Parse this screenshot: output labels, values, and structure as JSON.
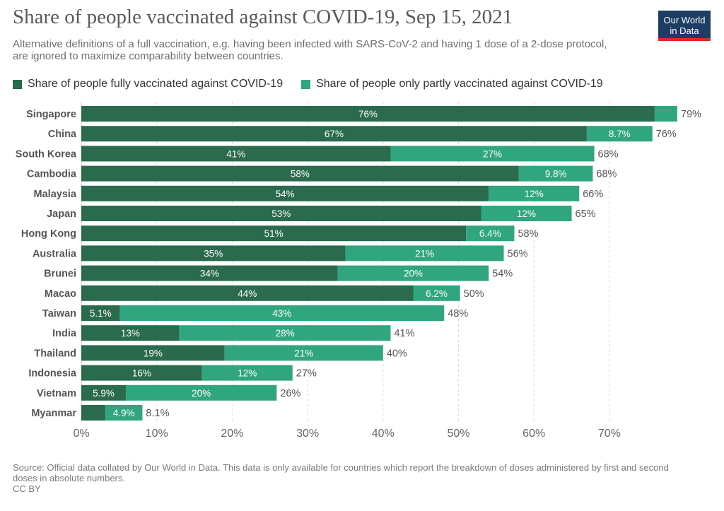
{
  "header": {
    "title": "Share of people vaccinated against COVID-19, Sep 15, 2021",
    "subtitle": "Alternative definitions of a full vaccination, e.g. having been infected with SARS-CoV-2 and having 1 dose of a 2-dose protocol, are ignored to maximize comparability between countries.",
    "logo_line1": "Our World",
    "logo_line2": "in Data"
  },
  "legend": {
    "full_label": "Share of people fully vaccinated against COVID-19",
    "partial_label": "Share of people only partly vaccinated against COVID-19"
  },
  "colors": {
    "full": "#2a6a4d",
    "partial": "#30a67e",
    "logo_bg": "#1d3d63",
    "logo_stripe": "#e02a2a"
  },
  "chart_data": {
    "type": "bar",
    "orientation": "horizontal",
    "stacked": true,
    "categories": [
      "Singapore",
      "China",
      "South Korea",
      "Cambodia",
      "Malaysia",
      "Japan",
      "Hong Kong",
      "Australia",
      "Brunei",
      "Macao",
      "Taiwan",
      "India",
      "Thailand",
      "Indonesia",
      "Vietnam",
      "Myanmar"
    ],
    "series": [
      {
        "name": "Share of people fully vaccinated against COVID-19",
        "values": [
          76,
          67,
          41,
          58,
          54,
          53,
          51,
          35,
          34,
          44,
          5.1,
          13,
          19,
          16,
          5.9,
          3.2
        ],
        "labels": [
          "76%",
          "67%",
          "41%",
          "58%",
          "54%",
          "53%",
          "51%",
          "35%",
          "34%",
          "44%",
          "5.1%",
          "13%",
          "19%",
          "16%",
          "5.9%",
          ""
        ]
      },
      {
        "name": "Share of people only partly vaccinated against COVID-19",
        "values": [
          3,
          8.7,
          27,
          9.8,
          12,
          12,
          6.4,
          21,
          20,
          6.2,
          43,
          28,
          21,
          12,
          20,
          4.9
        ],
        "labels": [
          "",
          "8.7%",
          "27%",
          "9.8%",
          "12%",
          "12%",
          "6.4%",
          "21%",
          "20%",
          "6.2%",
          "43%",
          "28%",
          "21%",
          "12%",
          "20%",
          "4.9%"
        ]
      }
    ],
    "totals": [
      "79%",
      "76%",
      "68%",
      "68%",
      "66%",
      "65%",
      "58%",
      "56%",
      "54%",
      "50%",
      "48%",
      "41%",
      "40%",
      "27%",
      "26%",
      "8.1%"
    ],
    "x_ticks": [
      0,
      10,
      20,
      30,
      40,
      50,
      60,
      70
    ],
    "x_tick_labels": [
      "0%",
      "10%",
      "20%",
      "30%",
      "40%",
      "50%",
      "60%",
      "70%"
    ],
    "xlim": [
      0,
      79
    ],
    "grid": true,
    "legend_position": "top-left"
  },
  "footer": {
    "source": "Source: Official data collated by Our World in Data. This data is only available for countries which report the breakdown of doses administered by first and second doses in absolute numbers.",
    "license": "CC BY"
  }
}
